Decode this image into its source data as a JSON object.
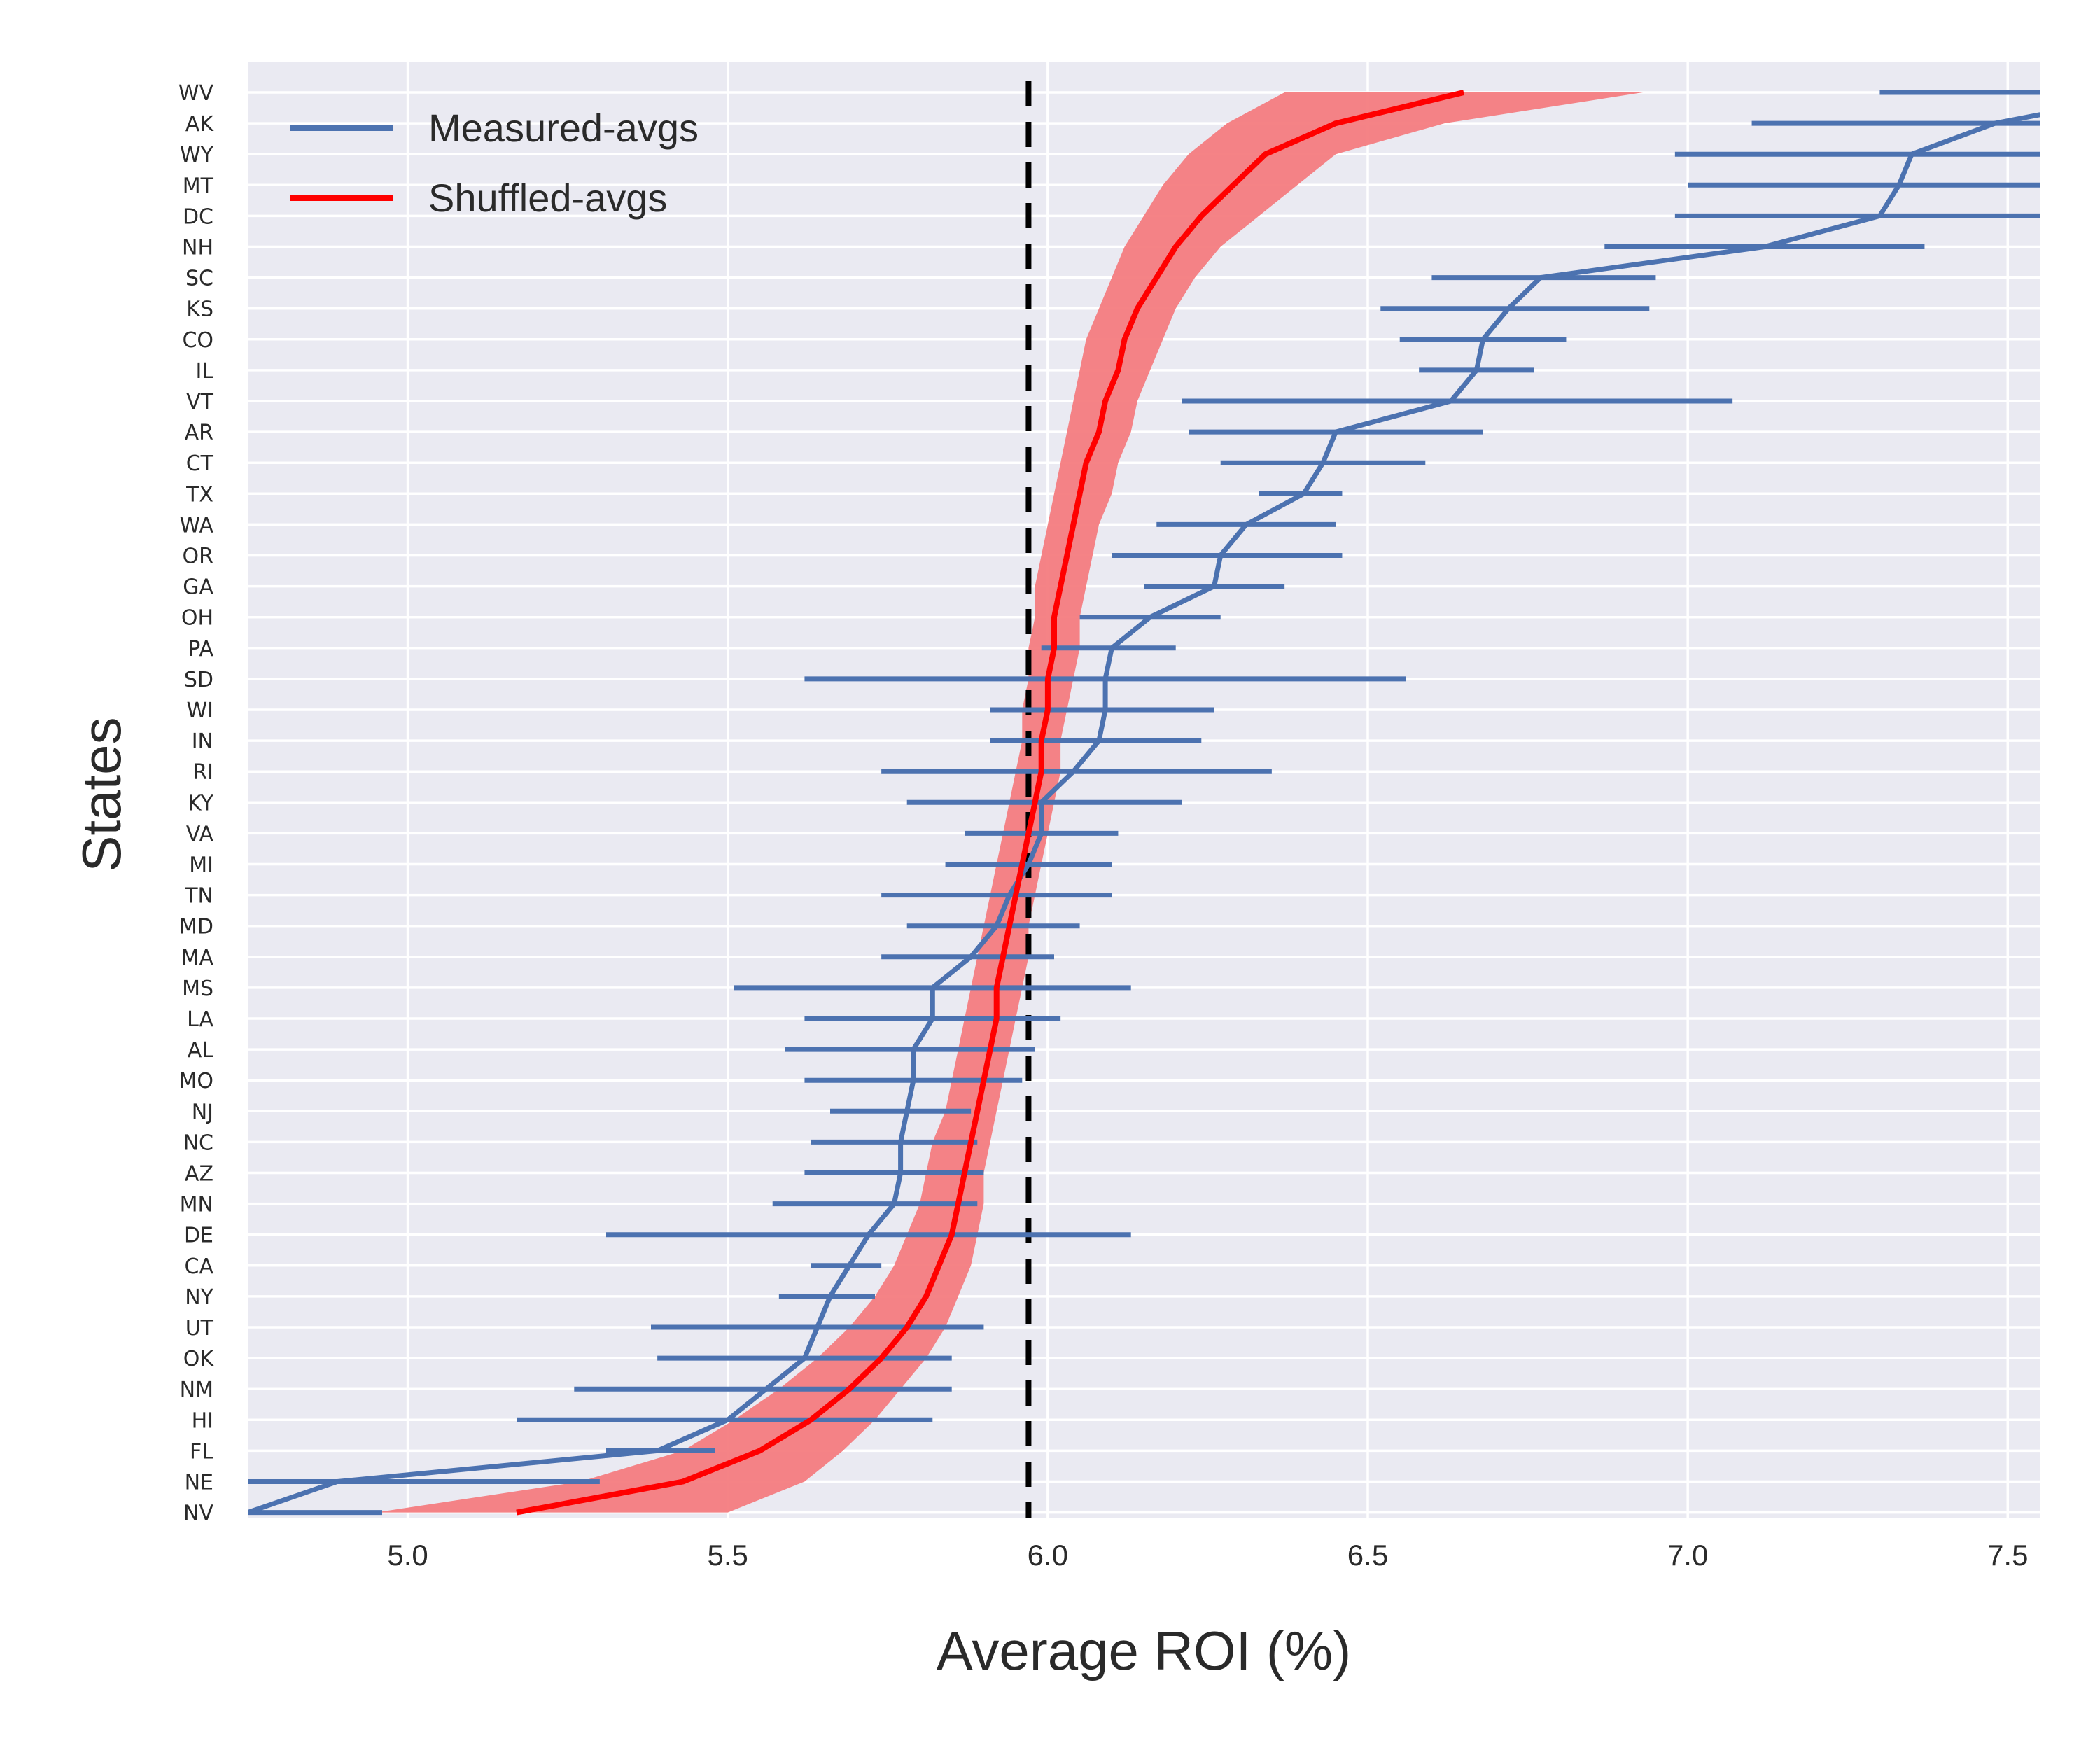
{
  "chart_data": {
    "type": "line",
    "xlabel": "Average ROI (%)",
    "ylabel": "States",
    "xlim": [
      4.75,
      7.55
    ],
    "xticks": [
      "5.0",
      "5.5",
      "6.0",
      "6.5",
      "7.0",
      "7.5"
    ],
    "grid": true,
    "legend_position": "top-left",
    "reference_line_x": 5.97,
    "states": [
      "WV",
      "AK",
      "WY",
      "MT",
      "DC",
      "NH",
      "SC",
      "KS",
      "CO",
      "IL",
      "VT",
      "AR",
      "CT",
      "TX",
      "WA",
      "OR",
      "GA",
      "OH",
      "PA",
      "SD",
      "WI",
      "IN",
      "RI",
      "KY",
      "VA",
      "MI",
      "TN",
      "MD",
      "MA",
      "MS",
      "LA",
      "AL",
      "MO",
      "NJ",
      "NC",
      "AZ",
      "MN",
      "DE",
      "CA",
      "NY",
      "UT",
      "OK",
      "NM",
      "HI",
      "FL",
      "NE",
      "NV"
    ],
    "series": [
      {
        "name": "Measured-avgs",
        "color": "#4c72b0",
        "values": [
          7.73,
          7.48,
          7.35,
          7.33,
          7.3,
          7.12,
          6.77,
          6.72,
          6.68,
          6.67,
          6.63,
          6.45,
          6.43,
          6.4,
          6.31,
          6.27,
          6.26,
          6.16,
          6.1,
          6.09,
          6.09,
          6.08,
          6.04,
          5.99,
          5.99,
          5.97,
          5.94,
          5.92,
          5.88,
          5.82,
          5.82,
          5.79,
          5.79,
          5.78,
          5.77,
          5.77,
          5.76,
          5.72,
          5.69,
          5.66,
          5.64,
          5.62,
          5.56,
          5.5,
          5.39,
          4.89,
          4.75
        ],
        "lower": [
          7.3,
          7.1,
          6.98,
          7.0,
          6.98,
          6.87,
          6.6,
          6.52,
          6.55,
          6.58,
          6.21,
          6.22,
          6.27,
          6.33,
          6.17,
          6.1,
          6.15,
          6.05,
          5.99,
          5.62,
          5.91,
          5.91,
          5.74,
          5.78,
          5.87,
          5.84,
          5.74,
          5.78,
          5.74,
          5.51,
          5.62,
          5.59,
          5.62,
          5.66,
          5.63,
          5.62,
          5.57,
          5.31,
          5.63,
          5.58,
          5.38,
          5.39,
          5.26,
          5.17,
          5.31,
          4.75,
          4.5
        ],
        "upper": [
          8.05,
          7.85,
          7.72,
          7.66,
          7.62,
          7.37,
          6.95,
          6.94,
          6.81,
          6.76,
          7.07,
          6.68,
          6.59,
          6.46,
          6.45,
          6.46,
          6.37,
          6.27,
          6.2,
          6.56,
          6.26,
          6.24,
          6.35,
          6.21,
          6.11,
          6.1,
          6.1,
          6.05,
          6.01,
          6.13,
          6.02,
          5.98,
          5.96,
          5.88,
          5.89,
          5.9,
          5.89,
          6.13,
          5.74,
          5.73,
          5.9,
          5.85,
          5.85,
          5.82,
          5.48,
          5.3,
          4.96
        ]
      },
      {
        "name": "Shuffled-avgs",
        "color": "#ff0000",
        "band_color": "#f47c7f",
        "values": [
          6.65,
          6.45,
          6.34,
          6.29,
          6.24,
          6.2,
          6.17,
          6.14,
          6.12,
          6.11,
          6.09,
          6.08,
          6.06,
          6.05,
          6.04,
          6.03,
          6.02,
          6.01,
          6.01,
          6.0,
          6.0,
          5.99,
          5.99,
          5.98,
          5.97,
          5.96,
          5.95,
          5.94,
          5.93,
          5.92,
          5.92,
          5.91,
          5.9,
          5.89,
          5.88,
          5.87,
          5.86,
          5.85,
          5.83,
          5.81,
          5.78,
          5.74,
          5.69,
          5.63,
          5.55,
          5.43,
          5.17
        ],
        "lower": [
          6.37,
          6.28,
          6.22,
          6.18,
          6.15,
          6.12,
          6.1,
          6.08,
          6.06,
          6.05,
          6.04,
          6.03,
          6.02,
          6.01,
          6.0,
          5.99,
          5.98,
          5.98,
          5.97,
          5.97,
          5.96,
          5.96,
          5.95,
          5.94,
          5.93,
          5.92,
          5.91,
          5.9,
          5.89,
          5.88,
          5.87,
          5.86,
          5.85,
          5.84,
          5.82,
          5.81,
          5.8,
          5.78,
          5.76,
          5.73,
          5.69,
          5.64,
          5.58,
          5.51,
          5.43,
          5.27,
          4.95
        ],
        "upper": [
          6.93,
          6.62,
          6.45,
          6.39,
          6.33,
          6.27,
          6.23,
          6.2,
          6.18,
          6.16,
          6.14,
          6.13,
          6.11,
          6.1,
          6.08,
          6.07,
          6.06,
          6.05,
          6.05,
          6.04,
          6.03,
          6.02,
          6.02,
          6.01,
          6.0,
          5.99,
          5.98,
          5.97,
          5.97,
          5.96,
          5.95,
          5.94,
          5.93,
          5.92,
          5.91,
          5.9,
          5.9,
          5.89,
          5.88,
          5.86,
          5.84,
          5.81,
          5.77,
          5.73,
          5.68,
          5.62,
          5.5
        ]
      }
    ]
  }
}
